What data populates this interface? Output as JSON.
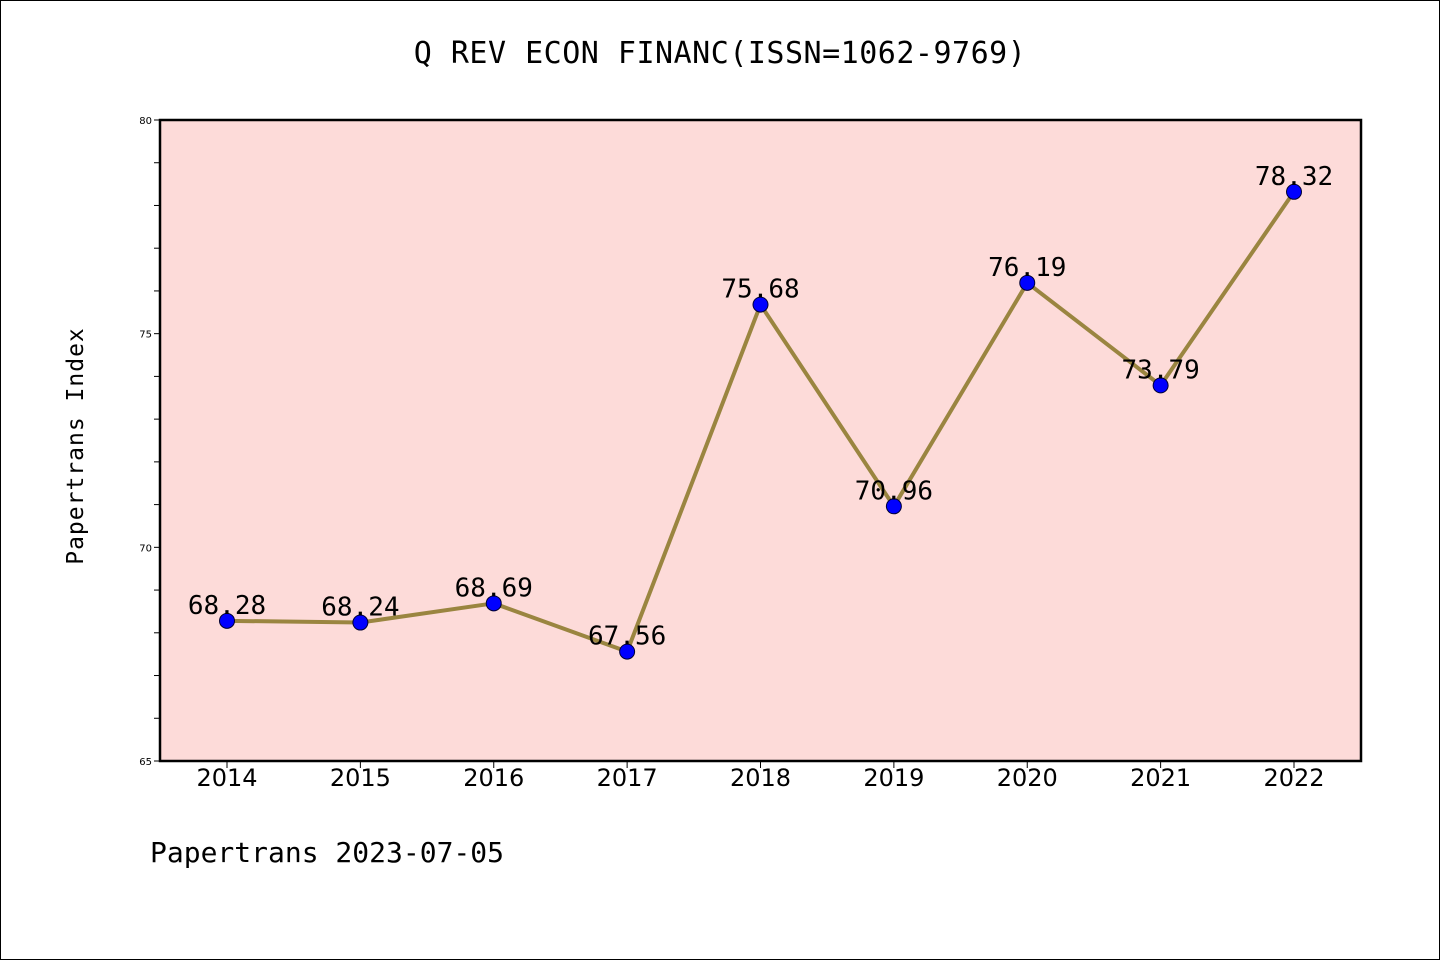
{
  "chart_data": {
    "type": "line",
    "title": "Q REV ECON FINANC(ISSN=1062-9769)",
    "ylabel": "Papertrans Index",
    "xlabel": "",
    "categories": [
      "2014",
      "2015",
      "2016",
      "2017",
      "2018",
      "2019",
      "2020",
      "2021",
      "2022"
    ],
    "values": [
      68.28,
      68.24,
      68.69,
      67.56,
      75.68,
      70.96,
      76.19,
      73.79,
      78.32
    ],
    "data_labels": [
      "68.28",
      "68.24",
      "68.69",
      "67.56",
      "75.68",
      "70.96",
      "76.19",
      "73.79",
      "78.32"
    ],
    "ylim": [
      65,
      80
    ],
    "y_major_ticks": [
      65,
      70,
      75,
      80
    ],
    "y_minor_step": 1,
    "grid": false,
    "colors": {
      "plot_background": "#fddbd9",
      "line": "#9a8540",
      "marker": "#0000ff"
    }
  },
  "footer": {
    "text": "Papertrans 2023-07-05"
  }
}
